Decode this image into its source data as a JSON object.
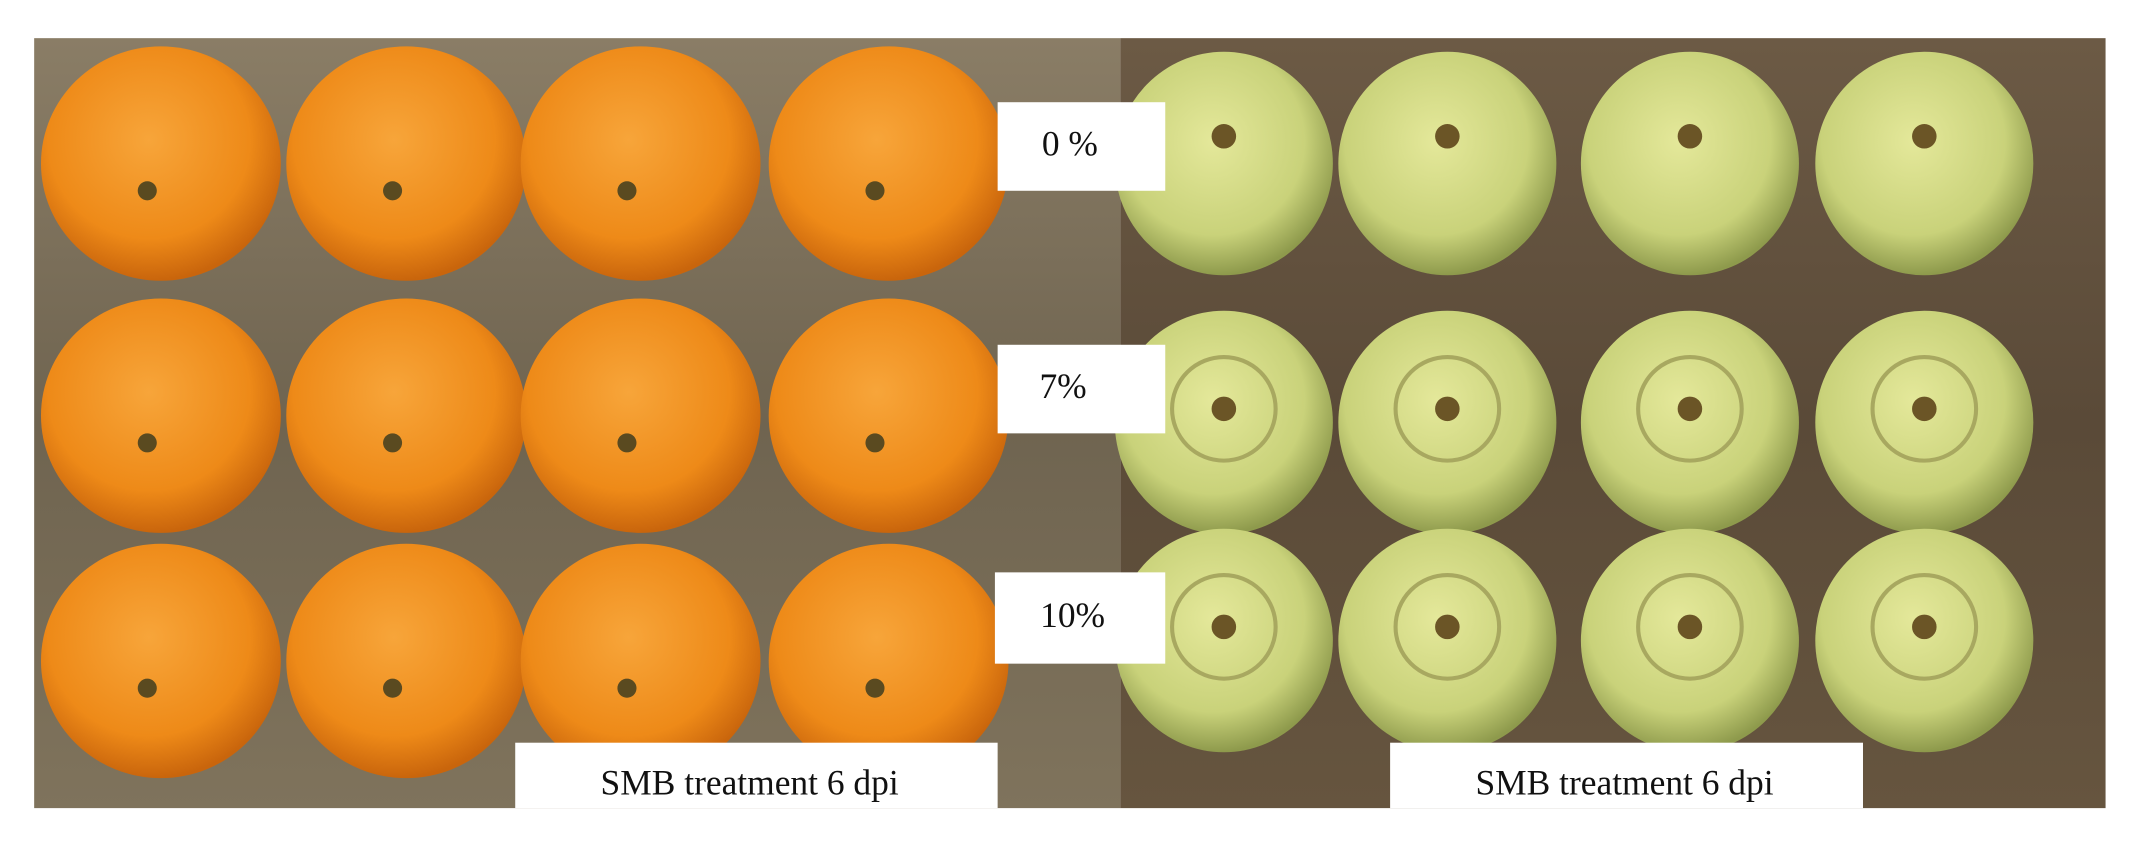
{
  "labels": {
    "row_0": "0 %",
    "row_7": "7%",
    "row_10": "10%"
  },
  "captions": {
    "left": "SMB treatment 6 dpi",
    "right": "SMB treatment 6 dpi"
  }
}
